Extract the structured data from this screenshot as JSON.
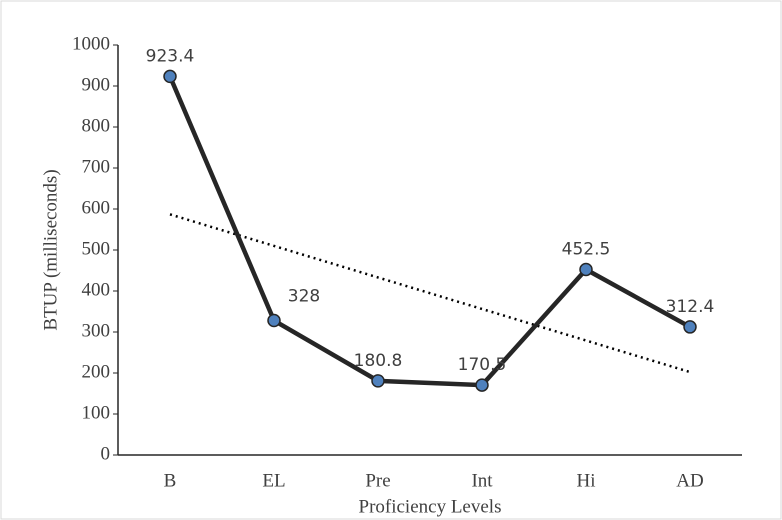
{
  "chart_data": {
    "type": "line",
    "categories": [
      "B",
      "EL",
      "Pre",
      "Int",
      "Hi",
      "AD"
    ],
    "series": [
      {
        "name": "BTUP",
        "color": "#262626",
        "marker_color": "#4f81bd",
        "values": [
          923.4,
          328,
          180.8,
          170.5,
          452.5,
          312.4
        ]
      }
    ],
    "x_label": "Proficiency Levels",
    "y_label": "BTUP (milliseconds)",
    "ylim": [
      0,
      1000
    ],
    "yticks": [
      0,
      100,
      200,
      300,
      400,
      500,
      600,
      700,
      800,
      900,
      1000
    ],
    "trendline": "linear",
    "grid": false
  }
}
